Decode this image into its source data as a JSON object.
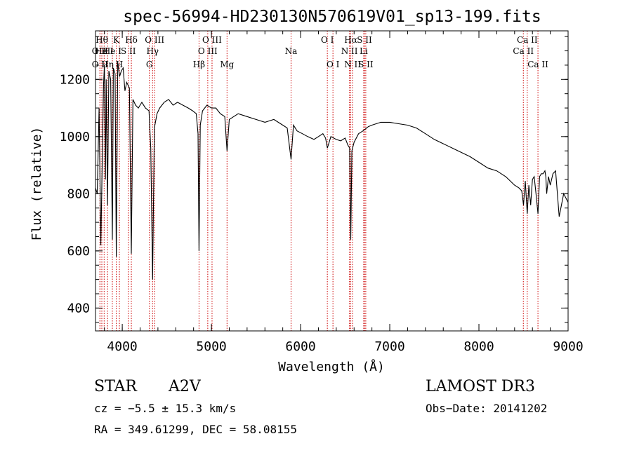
{
  "chart_data": {
    "type": "line",
    "title": "spec-56994-HD230130N570619V01_sp13-199.fits",
    "xlabel": "Wavelength (Å)",
    "ylabel": "Flux (relative)",
    "xlim": [
      3700,
      9000
    ],
    "ylim": [
      320,
      1370
    ],
    "x_ticks": [
      4000,
      5000,
      6000,
      7000,
      8000,
      9000
    ],
    "y_ticks": [
      400,
      600,
      800,
      1000,
      1200
    ],
    "spectrum": {
      "name": "flux",
      "x": [
        3700,
        3720,
        3740,
        3760,
        3775,
        3790,
        3800,
        3812,
        3820,
        3835,
        3850,
        3870,
        3889,
        3900,
        3920,
        3933,
        3950,
        3970,
        3990,
        4010,
        4030,
        4050,
        4080,
        4102,
        4120,
        4150,
        4180,
        4220,
        4260,
        4300,
        4320,
        4340,
        4360,
        4390,
        4420,
        4470,
        4520,
        4570,
        4620,
        4680,
        4740,
        4790,
        4830,
        4850,
        4861,
        4875,
        4900,
        4950,
        5000,
        5050,
        5100,
        5150,
        5175,
        5200,
        5250,
        5300,
        5400,
        5500,
        5600,
        5700,
        5800,
        5850,
        5893,
        5920,
        5960,
        6020,
        6080,
        6150,
        6200,
        6250,
        6280,
        6300,
        6340,
        6400,
        6450,
        6500,
        6530,
        6550,
        6563,
        6575,
        6600,
        6650,
        6700,
        6760,
        6800,
        6900,
        7000,
        7100,
        7200,
        7300,
        7400,
        7500,
        7600,
        7700,
        7800,
        7900,
        8000,
        8100,
        8200,
        8300,
        8400,
        8450,
        8480,
        8500,
        8520,
        8542,
        8560,
        8580,
        8600,
        8620,
        8640,
        8662,
        8680,
        8700,
        8720,
        8740,
        8750,
        8760,
        8780,
        8800,
        8830,
        8860,
        8900,
        8950,
        9000
      ],
      "y": [
        820,
        800,
        1100,
        620,
        900,
        1180,
        1250,
        850,
        1200,
        760,
        1230,
        1200,
        640,
        1240,
        1220,
        580,
        1260,
        1210,
        1230,
        1240,
        1160,
        1190,
        1170,
        590,
        1130,
        1110,
        1100,
        1120,
        1100,
        1090,
        960,
        500,
        1030,
        1080,
        1100,
        1120,
        1130,
        1110,
        1120,
        1110,
        1100,
        1090,
        1080,
        1010,
        600,
        1040,
        1090,
        1110,
        1100,
        1100,
        1080,
        1070,
        950,
        1060,
        1070,
        1080,
        1070,
        1060,
        1050,
        1060,
        1040,
        1030,
        920,
        1040,
        1020,
        1010,
        1000,
        990,
        1000,
        1010,
        995,
        960,
        1000,
        990,
        985,
        995,
        970,
        960,
        640,
        950,
        980,
        1010,
        1020,
        1035,
        1040,
        1050,
        1050,
        1045,
        1040,
        1030,
        1010,
        990,
        975,
        960,
        945,
        930,
        910,
        890,
        880,
        860,
        830,
        820,
        810,
        760,
        845,
        730,
        830,
        760,
        850,
        860,
        800,
        730,
        860,
        870,
        870,
        880,
        860,
        800,
        860,
        830,
        870,
        880,
        720,
        800,
        770
      ]
    },
    "line_markers": [
      {
        "x": 3750,
        "label": "O II",
        "row": 3
      },
      {
        "x": 3750,
        "label": "O II",
        "row": 2
      },
      {
        "x": 3771,
        "label": "Hθ",
        "row": 1
      },
      {
        "x": 3797,
        "label": "He I",
        "row": 2
      },
      {
        "x": 3835,
        "label": "Hη",
        "row": 3
      },
      {
        "x": 3889,
        "label": "He I",
        "row": 2
      },
      {
        "x": 3933,
        "label": "K",
        "row": 1
      },
      {
        "x": 3968,
        "label": "H",
        "row": 3
      },
      {
        "x": 4068,
        "label": "S II",
        "row": 2
      },
      {
        "x": 4102,
        "label": "Hδ",
        "row": 1
      },
      {
        "x": 4304,
        "label": "G",
        "row": 3
      },
      {
        "x": 4340,
        "label": "Hγ",
        "row": 2
      },
      {
        "x": 4363,
        "label": "O III",
        "row": 1
      },
      {
        "x": 4861,
        "label": "Hβ",
        "row": 3
      },
      {
        "x": 4959,
        "label": "O III",
        "row": 2
      },
      {
        "x": 5007,
        "label": "O III",
        "row": 1
      },
      {
        "x": 5175,
        "label": "Mg",
        "row": 3
      },
      {
        "x": 5893,
        "label": "Na",
        "row": 2
      },
      {
        "x": 6300,
        "label": "O I",
        "row": 1
      },
      {
        "x": 6363,
        "label": "O I",
        "row": 3
      },
      {
        "x": 6548,
        "label": "N II",
        "row": 2
      },
      {
        "x": 6563,
        "label": "Hα",
        "row": 1
      },
      {
        "x": 6583,
        "label": "N II",
        "row": 3
      },
      {
        "x": 6708,
        "label": "Li",
        "row": 2
      },
      {
        "x": 6716,
        "label": "S II",
        "row": 1
      },
      {
        "x": 6731,
        "label": "S II",
        "row": 3
      },
      {
        "x": 8498,
        "label": "Ca II",
        "row": 2
      },
      {
        "x": 8542,
        "label": "Ca II",
        "row": 1
      },
      {
        "x": 8662,
        "label": "Ca II",
        "row": 3
      }
    ],
    "marker_color": "#cc0000",
    "line_color": "#000000",
    "grid": false
  },
  "info": {
    "object_class": "STAR",
    "subclass": "A2V",
    "survey": "LAMOST DR3",
    "cz": "cz = −5.5 ± 15.3 km/s",
    "obs_date": "Obs−Date: 20141202",
    "coords": "RA = 349.61299, DEC =  58.08155"
  }
}
